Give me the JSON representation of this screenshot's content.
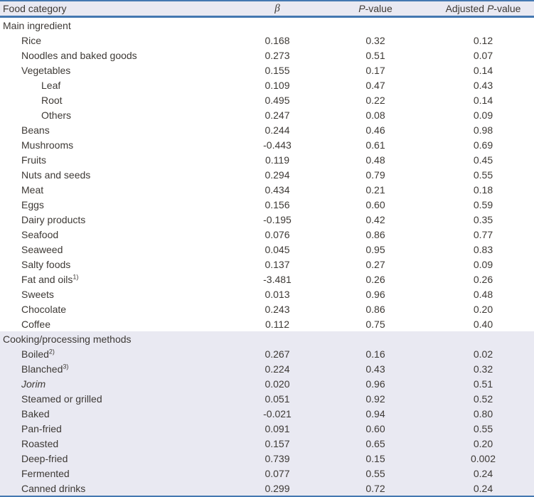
{
  "colors": {
    "accent_blue": "#4478b1",
    "band_background": "#e9e9f2",
    "text": "#3d3935"
  },
  "table": {
    "columns": [
      {
        "label": "Food category",
        "italic_p": false
      },
      {
        "label": "β",
        "italic_p": false
      },
      {
        "label": "P-value",
        "italic_p": true
      },
      {
        "label": "Adjusted P-value",
        "italic_p": true
      }
    ],
    "rows": [
      {
        "label": "Main ingredient",
        "indent": 0,
        "section": true,
        "group": "main",
        "beta": "",
        "p": "",
        "adj": ""
      },
      {
        "label": "Rice",
        "indent": 1,
        "group": "main",
        "beta": "0.168",
        "p": "0.32",
        "adj": "0.12"
      },
      {
        "label": "Noodles and baked goods",
        "indent": 1,
        "group": "main",
        "beta": "0.273",
        "p": "0.51",
        "adj": "0.07"
      },
      {
        "label": "Vegetables",
        "indent": 1,
        "group": "main",
        "beta": "0.155",
        "p": "0.17",
        "adj": "0.14"
      },
      {
        "label": "Leaf",
        "indent": 2,
        "group": "main",
        "beta": "0.109",
        "p": "0.47",
        "adj": "0.43"
      },
      {
        "label": "Root",
        "indent": 2,
        "group": "main",
        "beta": "0.495",
        "p": "0.22",
        "adj": "0.14"
      },
      {
        "label": "Others",
        "indent": 2,
        "group": "main",
        "beta": "0.247",
        "p": "0.08",
        "adj": "0.09"
      },
      {
        "label": "Beans",
        "indent": 1,
        "group": "main",
        "beta": "0.244",
        "p": "0.46",
        "adj": "0.98"
      },
      {
        "label": "Mushrooms",
        "indent": 1,
        "group": "main",
        "beta": "-0.443",
        "p": "0.61",
        "adj": "0.69"
      },
      {
        "label": "Fruits",
        "indent": 1,
        "group": "main",
        "beta": "0.119",
        "p": "0.48",
        "adj": "0.45"
      },
      {
        "label": "Nuts and seeds",
        "indent": 1,
        "group": "main",
        "beta": "0.294",
        "p": "0.79",
        "adj": "0.55"
      },
      {
        "label": "Meat",
        "indent": 1,
        "group": "main",
        "beta": "0.434",
        "p": "0.21",
        "adj": "0.18"
      },
      {
        "label": "Eggs",
        "indent": 1,
        "group": "main",
        "beta": "0.156",
        "p": "0.60",
        "adj": "0.59"
      },
      {
        "label": "Dairy products",
        "indent": 1,
        "group": "main",
        "beta": "-0.195",
        "p": "0.42",
        "adj": "0.35"
      },
      {
        "label": "Seafood",
        "indent": 1,
        "group": "main",
        "beta": "0.076",
        "p": "0.86",
        "adj": "0.77"
      },
      {
        "label": "Seaweed",
        "indent": 1,
        "group": "main",
        "beta": "0.045",
        "p": "0.95",
        "adj": "0.83"
      },
      {
        "label": "Salty foods",
        "indent": 1,
        "group": "main",
        "beta": "0.137",
        "p": "0.27",
        "adj": "0.09"
      },
      {
        "label": "Fat and oils",
        "sup": "1)",
        "indent": 1,
        "group": "main",
        "beta": "-3.481",
        "p": "0.26",
        "adj": "0.26"
      },
      {
        "label": "Sweets",
        "indent": 1,
        "group": "main",
        "beta": "0.013",
        "p": "0.96",
        "adj": "0.48"
      },
      {
        "label": "Chocolate",
        "indent": 1,
        "group": "main",
        "beta": "0.243",
        "p": "0.86",
        "adj": "0.20"
      },
      {
        "label": "Coffee",
        "indent": 1,
        "group": "main",
        "beta": "0.112",
        "p": "0.75",
        "adj": "0.40"
      },
      {
        "label": "Cooking/processing methods",
        "indent": 0,
        "section": true,
        "group": "cooking",
        "beta": "",
        "p": "",
        "adj": ""
      },
      {
        "label": "Boiled",
        "sup": "2)",
        "indent": 1,
        "group": "cooking",
        "beta": "0.267",
        "p": "0.16",
        "adj": "0.02"
      },
      {
        "label": "Blanched",
        "sup": "3)",
        "indent": 1,
        "group": "cooking",
        "beta": "0.224",
        "p": "0.43",
        "adj": "0.32"
      },
      {
        "label": "Jorim",
        "italic": true,
        "indent": 1,
        "group": "cooking",
        "beta": "0.020",
        "p": "0.96",
        "adj": "0.51"
      },
      {
        "label": "Steamed or grilled",
        "indent": 1,
        "group": "cooking",
        "beta": "0.051",
        "p": "0.92",
        "adj": "0.52"
      },
      {
        "label": "Baked",
        "indent": 1,
        "group": "cooking",
        "beta": "-0.021",
        "p": "0.94",
        "adj": "0.80"
      },
      {
        "label": "Pan-fried",
        "indent": 1,
        "group": "cooking",
        "beta": "0.091",
        "p": "0.60",
        "adj": "0.55"
      },
      {
        "label": "Roasted",
        "indent": 1,
        "group": "cooking",
        "beta": "0.157",
        "p": "0.65",
        "adj": "0.20"
      },
      {
        "label": "Deep-fried",
        "indent": 1,
        "group": "cooking",
        "beta": "0.739",
        "p": "0.15",
        "adj": "0.002"
      },
      {
        "label": "Fermented",
        "indent": 1,
        "group": "cooking",
        "beta": "0.077",
        "p": "0.55",
        "adj": "0.24"
      },
      {
        "label": "Canned drinks",
        "indent": 1,
        "group": "cooking",
        "beta": "0.299",
        "p": "0.72",
        "adj": "0.24"
      }
    ]
  }
}
